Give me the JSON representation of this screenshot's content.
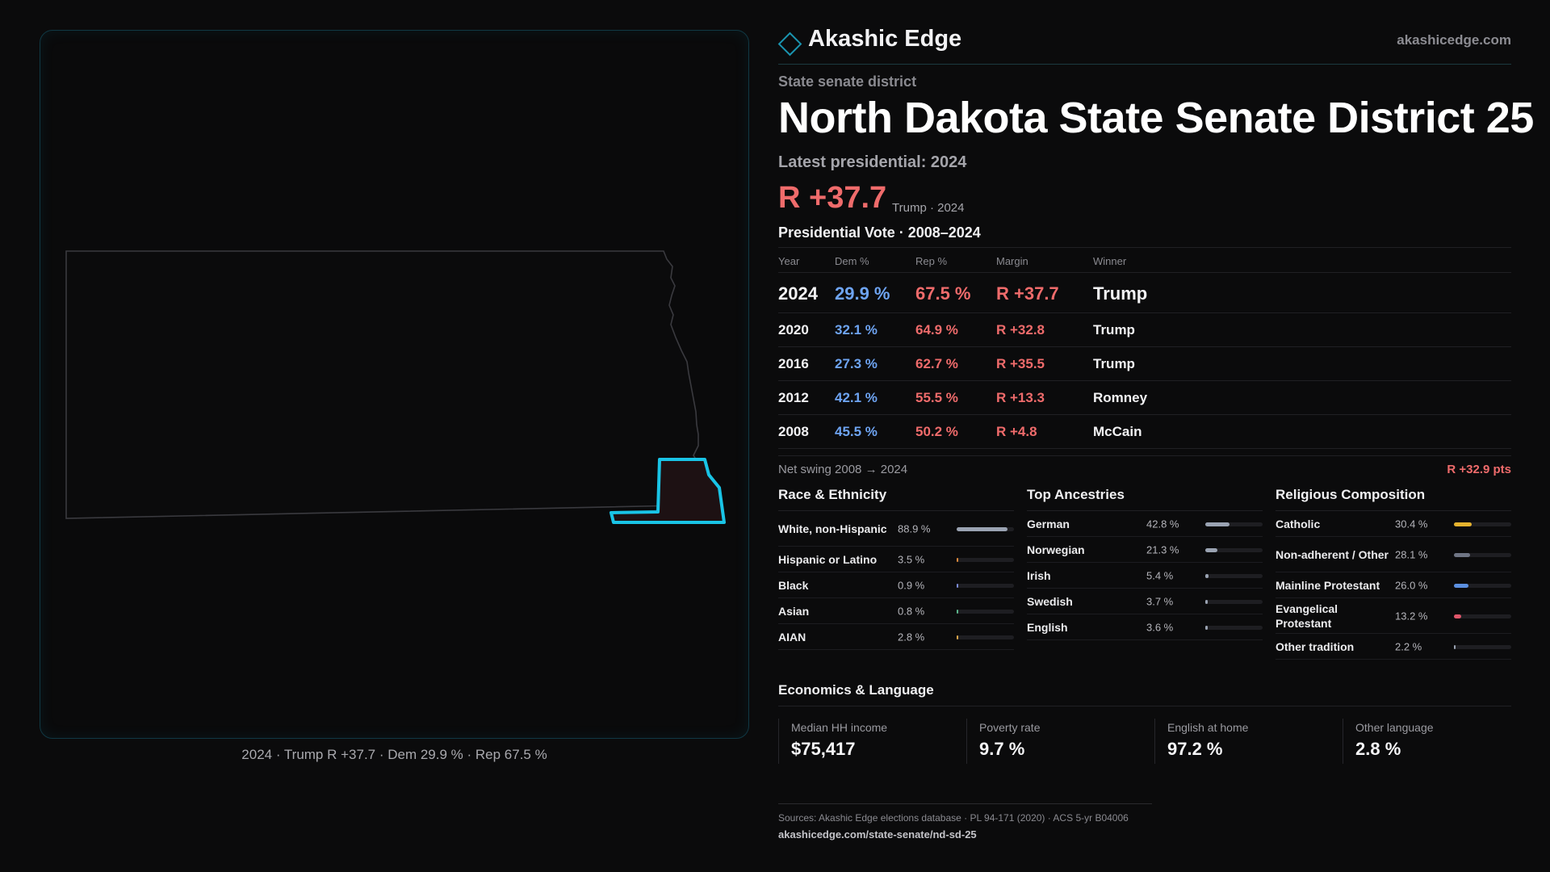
{
  "brand": {
    "name": "Akashic Edge",
    "url": "akashicedge.com"
  },
  "header": {
    "kicker": "State senate district",
    "title": "North Dakota State Senate District 25",
    "latest": "Latest presidential: 2024",
    "margin": "R +37.7",
    "margin_sub": "Trump · 2024"
  },
  "map": {
    "caption": "2024 · Trump R +37.7 · Dem 29.9 % · Rep 67.5 %",
    "highlight_color": "#19c4e6"
  },
  "presidential": {
    "title": "Presidential Vote · 2008–2024",
    "columns": [
      "Year",
      "Dem %",
      "Rep %",
      "Margin",
      "Winner"
    ],
    "rows": [
      {
        "year": "2024",
        "dem": "29.9 %",
        "rep": "67.5 %",
        "margin": "R +37.7",
        "winner": "Trump"
      },
      {
        "year": "2020",
        "dem": "32.1 %",
        "rep": "64.9 %",
        "margin": "R +32.8",
        "winner": "Trump"
      },
      {
        "year": "2016",
        "dem": "27.3 %",
        "rep": "62.7 %",
        "margin": "R +35.5",
        "winner": "Trump"
      },
      {
        "year": "2012",
        "dem": "42.1 %",
        "rep": "55.5 %",
        "margin": "R +13.3",
        "winner": "Romney"
      },
      {
        "year": "2008",
        "dem": "45.5 %",
        "rep": "50.2 %",
        "margin": "R +4.8",
        "winner": "McCain"
      }
    ],
    "swing_label": "Net swing 2008 → 2024",
    "swing_value": "R +32.9 pts"
  },
  "race": {
    "title": "Race & Ethnicity",
    "items": [
      {
        "label": "White, non-Hispanic",
        "value": "88.9 %",
        "pct": 88.9,
        "color": "#9aa3b2",
        "two_line": true
      },
      {
        "label": "Hispanic or Latino",
        "value": "3.5 %",
        "pct": 3.5,
        "color": "#e08a3c",
        "two_line": false
      },
      {
        "label": "Black",
        "value": "0.9 %",
        "pct": 0.9,
        "color": "#7b8bd6",
        "two_line": false
      },
      {
        "label": "Asian",
        "value": "0.8 %",
        "pct": 0.8,
        "color": "#5ab58a",
        "two_line": false
      },
      {
        "label": "AIAN",
        "value": "2.8 %",
        "pct": 2.8,
        "color": "#d9a54a",
        "two_line": false
      }
    ]
  },
  "ancestry": {
    "title": "Top Ancestries",
    "items": [
      {
        "label": "German",
        "value": "42.8 %",
        "pct": 42.8,
        "color": "#9aa3b2",
        "two_line": false
      },
      {
        "label": "Norwegian",
        "value": "21.3 %",
        "pct": 21.3,
        "color": "#9aa3b2",
        "two_line": false
      },
      {
        "label": "Irish",
        "value": "5.4 %",
        "pct": 5.4,
        "color": "#9aa3b2",
        "two_line": false
      },
      {
        "label": "Swedish",
        "value": "3.7 %",
        "pct": 3.7,
        "color": "#9aa3b2",
        "two_line": false
      },
      {
        "label": "English",
        "value": "3.6 %",
        "pct": 3.6,
        "color": "#9aa3b2",
        "two_line": false
      }
    ]
  },
  "religion": {
    "title": "Religious Composition",
    "items": [
      {
        "label": "Catholic",
        "value": "30.4 %",
        "pct": 30.4,
        "color": "#e6b32e",
        "two_line": false
      },
      {
        "label": "Non-adherent / Other",
        "value": "28.1 %",
        "pct": 28.1,
        "color": "#6f7584",
        "two_line": true
      },
      {
        "label": "Mainline Protestant",
        "value": "26.0 %",
        "pct": 26.0,
        "color": "#5b8fe0",
        "two_line": false
      },
      {
        "label": "Evangelical Protestant",
        "value": "13.2 %",
        "pct": 13.2,
        "color": "#e0566a",
        "two_line": true
      },
      {
        "label": "Other tradition",
        "value": "2.2 %",
        "pct": 2.2,
        "color": "#9aa3b2",
        "two_line": false
      }
    ]
  },
  "economics": {
    "title": "Economics & Language",
    "cards": [
      {
        "label": "Median HH income",
        "value": "$75,417"
      },
      {
        "label": "Poverty rate",
        "value": "9.7 %"
      },
      {
        "label": "English at home",
        "value": "97.2 %"
      },
      {
        "label": "Other language",
        "value": "2.8 %"
      }
    ]
  },
  "footer": {
    "sources": "Sources: Akashic Edge elections database · PL 94-171 (2020) · ACS 5-yr B04006",
    "url": "akashicedge.com/state-senate/nd-sd-25"
  },
  "colors": {
    "dem": "#6ea4f2",
    "rep": "#ef6b6b",
    "accent": "#19c4e6"
  }
}
